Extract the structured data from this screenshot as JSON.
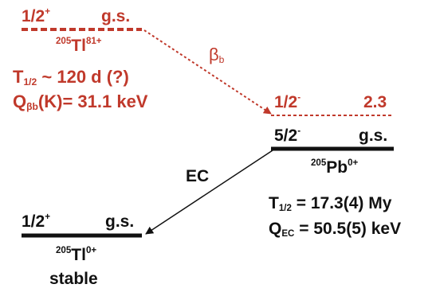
{
  "colors": {
    "red": "#c0392b",
    "black": "#111111"
  },
  "tl205_ion": {
    "spin": "1/2",
    "parity": "+",
    "level": "g.s.",
    "mass": "205",
    "element": "Tl",
    "charge": "81+",
    "halflife_sym": "T",
    "halflife_sub": "1/2",
    "halflife_value": "~ 120 d (?)",
    "q_sym": "Q",
    "q_sub": "βb",
    "q_value": "(K)= 31.1 keV"
  },
  "beta_b": {
    "sym": "β",
    "sub": "b"
  },
  "pb205": {
    "excited_spin": "1/2",
    "excited_parity": "-",
    "excited_energy": "2.3",
    "gs_spin": "5/2",
    "gs_parity": "-",
    "gs_level": "g.s.",
    "mass": "205",
    "element": "Pb",
    "charge": "0+",
    "halflife_sym": "T",
    "halflife_sub": "1/2",
    "halflife_value": "= 17.3(4) My",
    "q_sym": "Q",
    "q_sub": "EC",
    "q_value": "= 50.5(5) keV"
  },
  "ec_label": "EC",
  "tl205_neutral": {
    "spin": "1/2",
    "parity": "+",
    "level": "g.s.",
    "mass": "205",
    "element": "Tl",
    "charge": "0+",
    "status": "stable"
  }
}
